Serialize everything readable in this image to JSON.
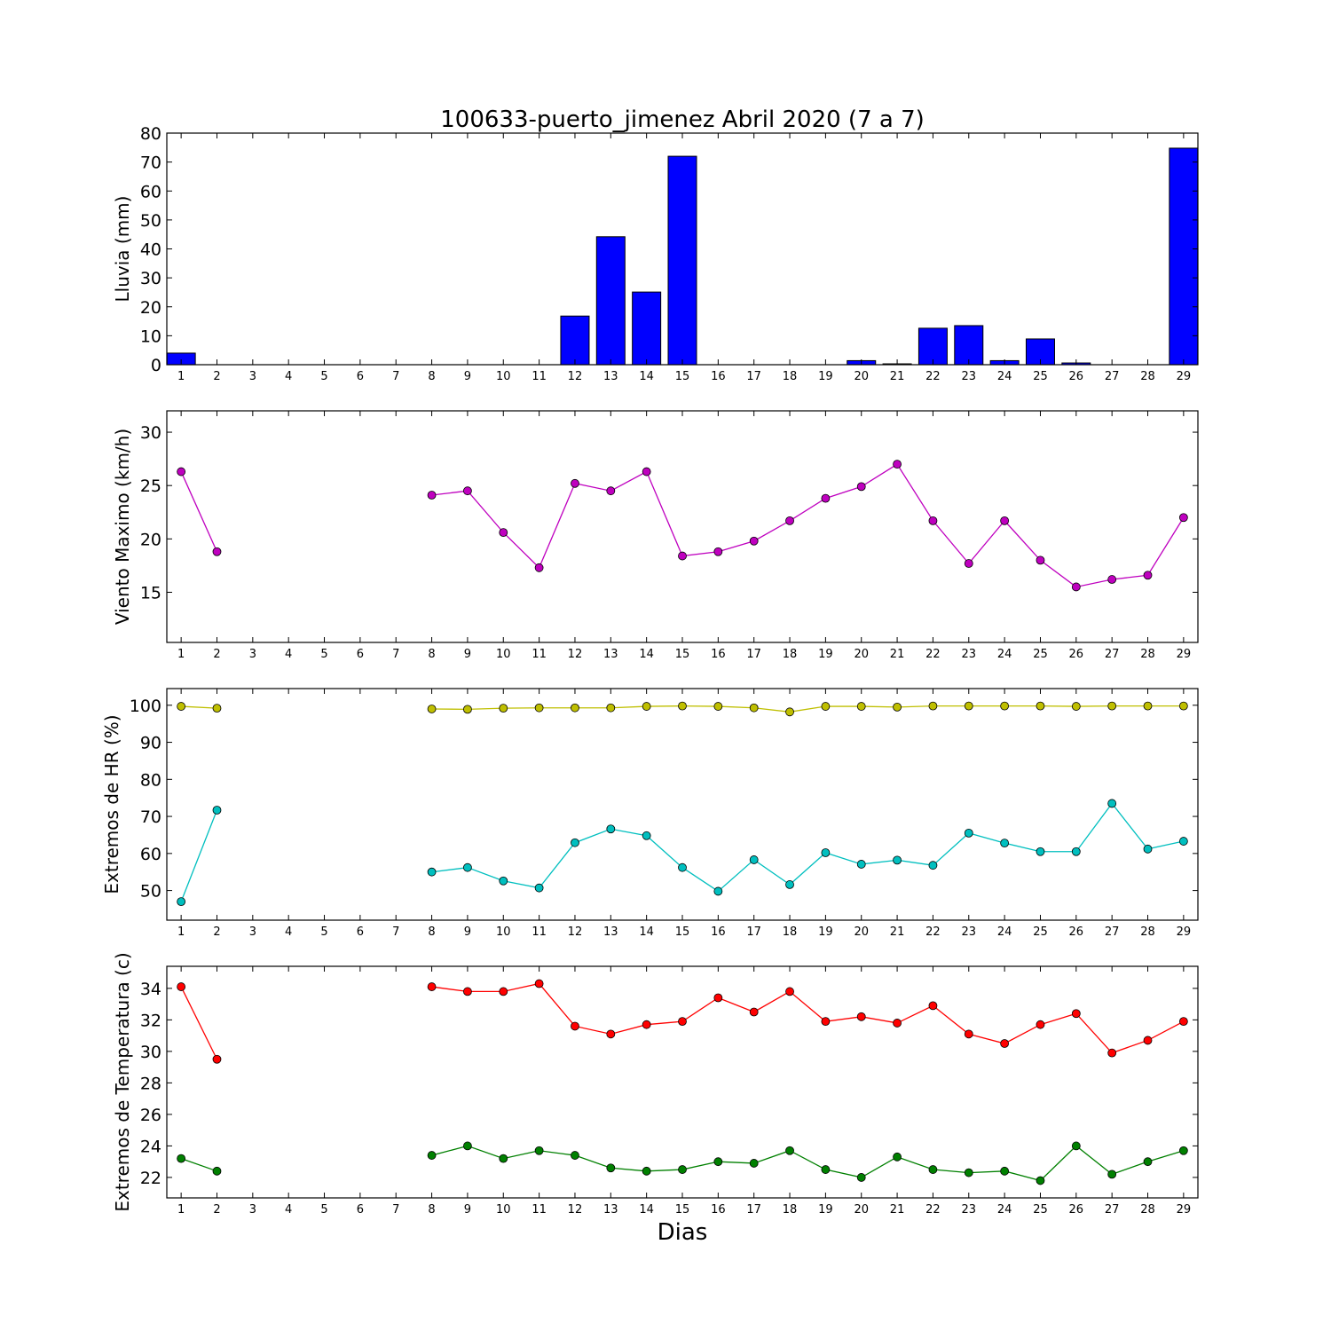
{
  "chart_data": {
    "title": "100633-puerto_jimenez Abril 2020  (7 a 7)",
    "xlabel": "Dias",
    "days": [
      1,
      2,
      3,
      4,
      5,
      6,
      7,
      8,
      9,
      10,
      11,
      12,
      13,
      14,
      15,
      16,
      17,
      18,
      19,
      20,
      21,
      22,
      23,
      24,
      25,
      26,
      27,
      28,
      29
    ],
    "panels": [
      {
        "type": "bar",
        "ylabel": "Lluvia (mm)",
        "ylim": [
          0,
          80
        ],
        "yticks": [
          0,
          10,
          20,
          30,
          40,
          50,
          60,
          70,
          80
        ],
        "series": [
          {
            "color": "#0000ff",
            "values": [
              4.0,
              0,
              0,
              0,
              0,
              0,
              0,
              0,
              0,
              0,
              0,
              16.8,
              44.2,
              25.1,
              72.0,
              0,
              0,
              0,
              0,
              1.4,
              0.3,
              12.6,
              13.5,
              1.4,
              8.9,
              0.6,
              0,
              0,
              74.8
            ]
          }
        ]
      },
      {
        "type": "line",
        "ylabel": "Viento Maximo (km/h)",
        "ylim": [
          10.3,
          32
        ],
        "yticks": [
          15,
          20,
          25,
          30
        ],
        "series": [
          {
            "color": "#bf00bf",
            "values": [
              26.3,
              18.8,
              null,
              null,
              null,
              null,
              null,
              24.1,
              24.5,
              20.6,
              17.3,
              25.2,
              24.5,
              26.3,
              18.4,
              18.8,
              19.8,
              21.7,
              23.8,
              24.9,
              27.0,
              21.7,
              17.7,
              21.7,
              18.0,
              15.5,
              16.2,
              16.6,
              22.0
            ]
          }
        ]
      },
      {
        "type": "line",
        "ylabel": "Extremos de HR (%)",
        "ylim": [
          42,
          104.5
        ],
        "yticks": [
          50,
          60,
          70,
          80,
          90,
          100
        ],
        "series": [
          {
            "color": "#bfbf00",
            "values": [
              99.7,
              99.2,
              null,
              null,
              null,
              null,
              null,
              99.0,
              98.9,
              99.2,
              99.3,
              99.3,
              99.3,
              99.7,
              99.8,
              99.7,
              99.3,
              98.2,
              99.7,
              99.7,
              99.5,
              99.8,
              99.8,
              99.8,
              99.8,
              99.7,
              99.8,
              99.8,
              99.8
            ]
          },
          {
            "color": "#00bfbf",
            "values": [
              47.0,
              71.7,
              null,
              null,
              null,
              null,
              null,
              55.0,
              56.2,
              52.6,
              50.7,
              62.9,
              66.6,
              64.8,
              56.2,
              49.8,
              58.3,
              51.6,
              60.2,
              57.1,
              58.2,
              56.8,
              65.5,
              62.8,
              60.5,
              60.5,
              73.5,
              61.2,
              63.3
            ]
          }
        ]
      },
      {
        "type": "line",
        "ylabel": "Extremos de Temperatura (c)",
        "ylim": [
          20.7,
          35.4
        ],
        "yticks": [
          22,
          24,
          26,
          28,
          30,
          32,
          34
        ],
        "series": [
          {
            "color": "#ff0000",
            "values": [
              34.1,
              29.5,
              null,
              null,
              null,
              null,
              null,
              34.1,
              33.8,
              33.8,
              34.3,
              31.6,
              31.1,
              31.7,
              31.9,
              33.4,
              32.5,
              33.8,
              31.9,
              32.2,
              31.8,
              32.9,
              31.1,
              30.5,
              31.7,
              32.4,
              29.9,
              30.7,
              31.9
            ]
          },
          {
            "color": "#008000",
            "values": [
              23.2,
              22.4,
              null,
              null,
              null,
              null,
              null,
              23.4,
              24.0,
              23.2,
              23.7,
              23.4,
              22.6,
              22.4,
              22.5,
              23.0,
              22.9,
              23.7,
              22.5,
              22.0,
              23.3,
              22.5,
              22.3,
              22.4,
              21.8,
              24.0,
              22.2,
              23.0,
              23.7
            ]
          }
        ]
      }
    ]
  }
}
